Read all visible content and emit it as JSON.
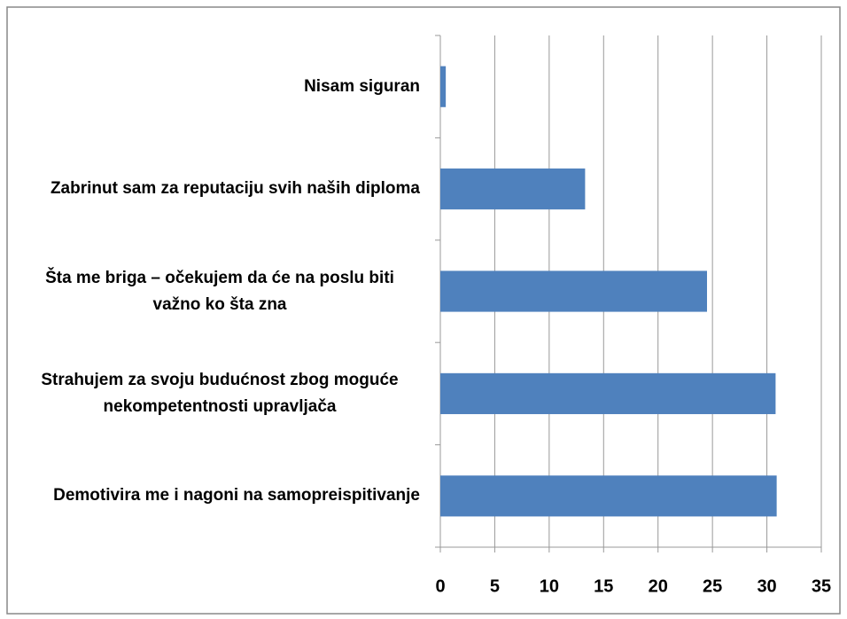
{
  "chart_data": {
    "type": "bar",
    "orientation": "horizontal",
    "categories": [
      "Nisam siguran",
      "Zabrinut sam za reputaciju svih naših diploma",
      "Šta me briga – očekujem da će na poslu biti važno ko šta zna",
      "Strahujem za svoju budućnost zbog moguće nekompetentnosti upravljača",
      "Demotivira me i nagoni na samopreispitivanje"
    ],
    "values": [
      0.5,
      13.3,
      24.5,
      30.8,
      30.9
    ],
    "color": "#4f81bd",
    "xlim": [
      0,
      35
    ],
    "xticks": [
      0,
      5,
      10,
      15,
      20,
      25,
      30,
      35
    ],
    "grid": true
  }
}
